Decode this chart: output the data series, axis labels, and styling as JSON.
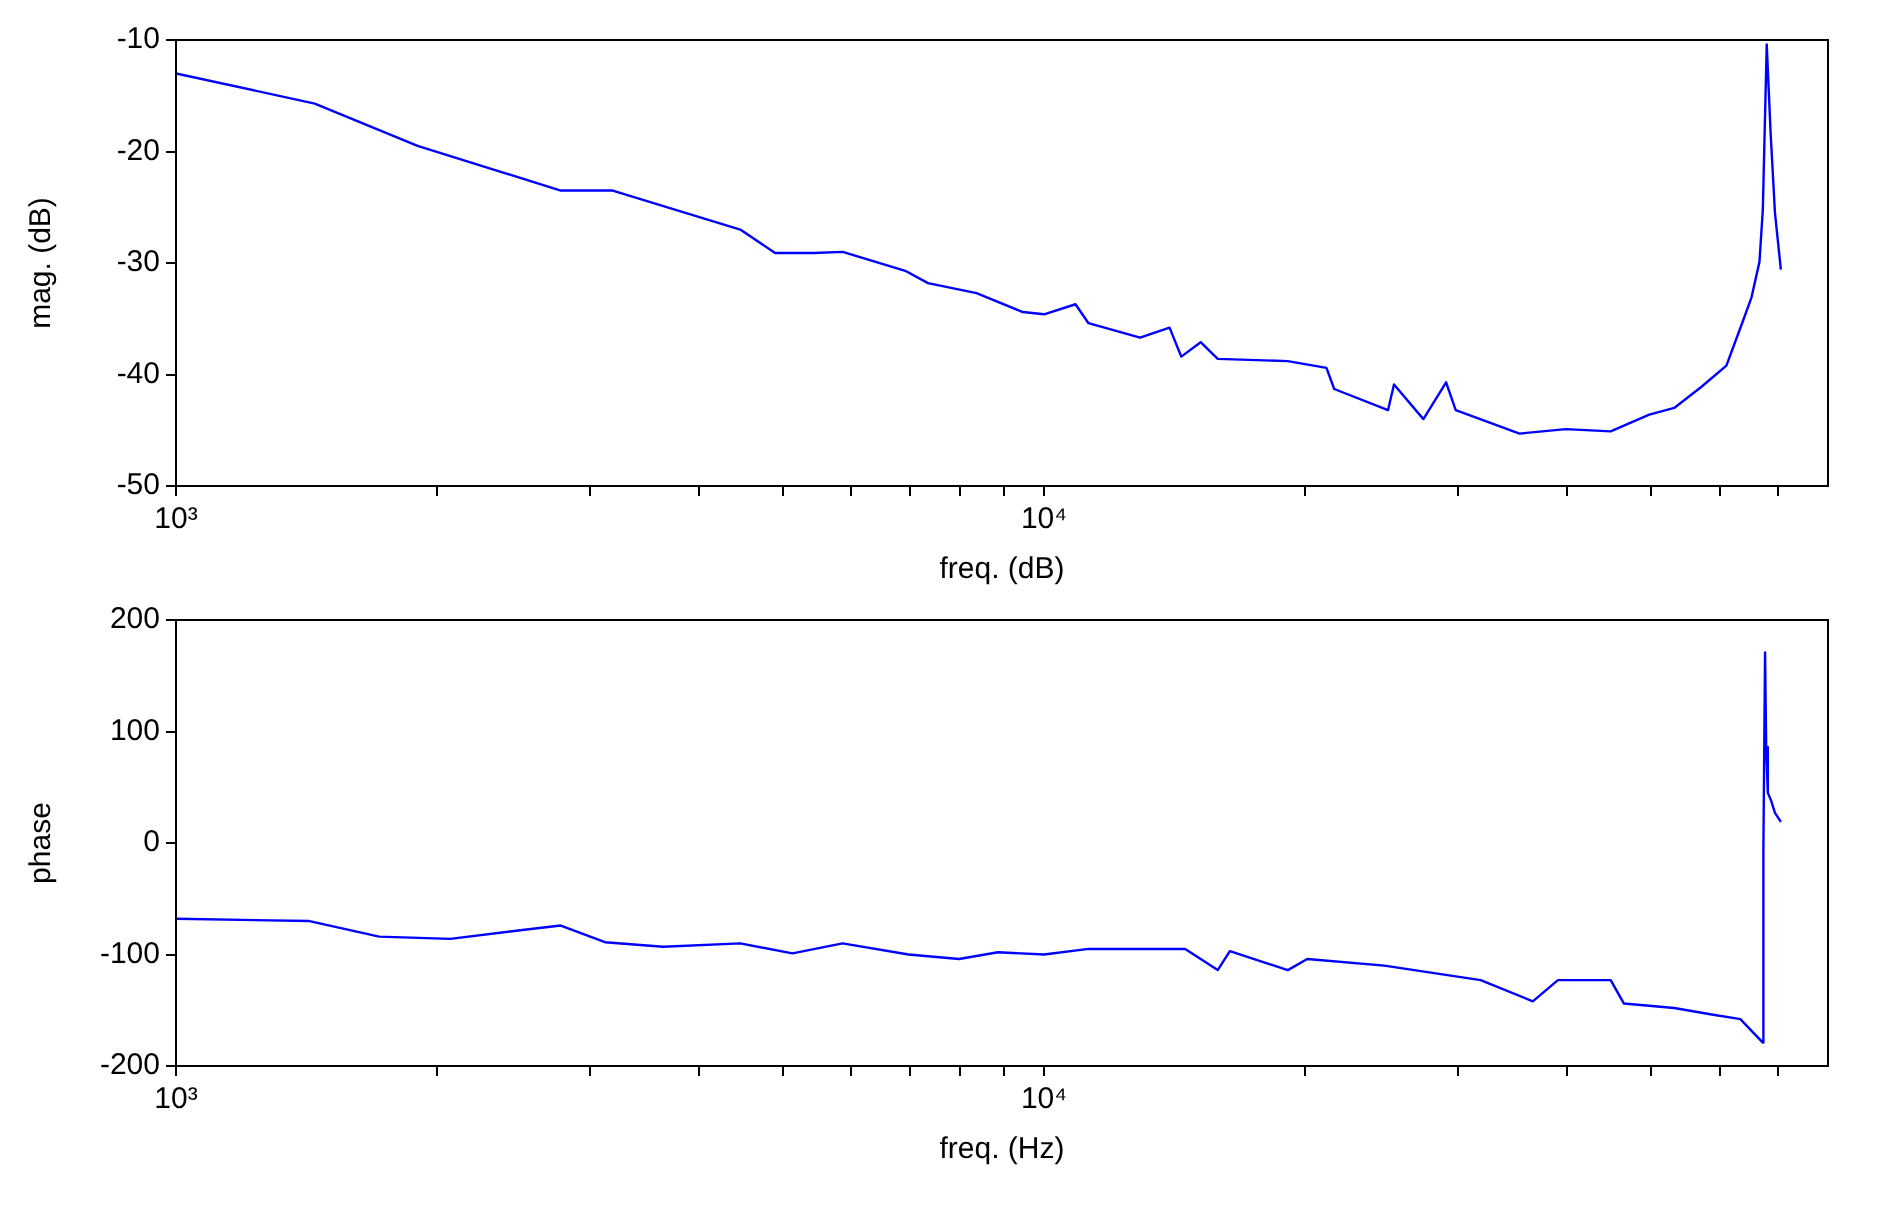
{
  "chart_data": [
    {
      "type": "line",
      "xlabel": "freq. (dB)",
      "ylabel": "mag. (dB)",
      "log": "x",
      "grid": false,
      "legend": false,
      "x": [
        1000,
        1445,
        1898,
        2775,
        3185,
        4467,
        4900,
        5430,
        5860,
        6920,
        7350,
        8360,
        9450,
        10000,
        10870,
        11250,
        12900,
        13950,
        14390,
        15150,
        15850,
        19090,
        21150,
        21590,
        24900,
        25300,
        27350,
        29050,
        29800,
        35300,
        39900,
        44950,
        49800,
        53200,
        57200,
        61100,
        63700,
        65300,
        66700,
        67300,
        68000,
        68700,
        69500,
        70600
      ],
      "series": [
        {
          "color": "#0000ff",
          "values": [
            -13,
            -15.7,
            -19.5,
            -23.5,
            -23.5,
            -27,
            -29.1,
            -29.1,
            -29,
            -30.7,
            -31.8,
            -32.7,
            -34.4,
            -34.6,
            -33.7,
            -35.4,
            -36.7,
            -35.8,
            -38.4,
            -37.1,
            -38.6,
            -38.8,
            -39.4,
            -41.3,
            -43.2,
            -40.9,
            -44,
            -40.7,
            -43.2,
            -45.3,
            -44.9,
            -45.1,
            -43.6,
            -43,
            -41.1,
            -39.2,
            -35.4,
            -33.1,
            -29.9,
            -25.2,
            -10.4,
            -18.3,
            -25.5,
            -30.6
          ]
        }
      ],
      "xlim": [
        1000,
        80000
      ],
      "xticks": [
        {
          "value": 1000,
          "label": "10³"
        },
        {
          "value": 2000,
          "label": null
        },
        {
          "value": 3000,
          "label": null
        },
        {
          "value": 4000,
          "label": null
        },
        {
          "value": 5000,
          "label": null
        },
        {
          "value": 6000,
          "label": null
        },
        {
          "value": 7000,
          "label": null
        },
        {
          "value": 8000,
          "label": null
        },
        {
          "value": 9000,
          "label": null
        },
        {
          "value": 10000,
          "label": "10⁴"
        },
        {
          "value": 20000,
          "label": null
        },
        {
          "value": 30000,
          "label": null
        },
        {
          "value": 40000,
          "label": null
        },
        {
          "value": 50000,
          "label": null
        },
        {
          "value": 60000,
          "label": null
        },
        {
          "value": 70000,
          "label": null
        }
      ],
      "ylim": [
        -50,
        -10
      ],
      "yticks": [
        -50,
        -40,
        -30,
        -20,
        -10
      ]
    },
    {
      "type": "line",
      "xlabel": "freq. (Hz)",
      "ylabel": "phase",
      "log": "x",
      "grid": false,
      "legend": false,
      "x": [
        1000,
        1425,
        1714,
        2070,
        2506,
        2775,
        3120,
        3640,
        4467,
        5130,
        5860,
        6980,
        7980,
        8850,
        10000,
        11250,
        14540,
        15850,
        16370,
        19090,
        20100,
        24660,
        31840,
        36560,
        39080,
        44950,
        46560,
        53200,
        59000,
        63400,
        67300,
        67400,
        67700,
        67900,
        68200,
        68800,
        69500,
        70600
      ],
      "series": [
        {
          "color": "#0000ff",
          "values": [
            -68,
            -70,
            -84,
            -86,
            -78,
            -74,
            -89,
            -93,
            -90,
            -99,
            -90,
            -100,
            -104,
            -98,
            -100,
            -95,
            -95,
            -114,
            -97,
            -114,
            -104,
            -110,
            -123,
            -142,
            -123,
            -123,
            -144,
            -148,
            -154,
            -158,
            -179,
            -6,
            171,
            86,
            45,
            38,
            27,
            19
          ]
        }
      ],
      "xlim": [
        1000,
        80000
      ],
      "xticks": [
        {
          "value": 1000,
          "label": "10³"
        },
        {
          "value": 2000,
          "label": null
        },
        {
          "value": 3000,
          "label": null
        },
        {
          "value": 4000,
          "label": null
        },
        {
          "value": 5000,
          "label": null
        },
        {
          "value": 6000,
          "label": null
        },
        {
          "value": 7000,
          "label": null
        },
        {
          "value": 8000,
          "label": null
        },
        {
          "value": 9000,
          "label": null
        },
        {
          "value": 10000,
          "label": "10⁴"
        },
        {
          "value": 20000,
          "label": null
        },
        {
          "value": 30000,
          "label": null
        },
        {
          "value": 40000,
          "label": null
        },
        {
          "value": 50000,
          "label": null
        },
        {
          "value": 60000,
          "label": null
        },
        {
          "value": 70000,
          "label": null
        }
      ],
      "ylim": [
        -200,
        200
      ],
      "yticks": [
        -200,
        -100,
        0,
        100,
        200
      ]
    }
  ]
}
